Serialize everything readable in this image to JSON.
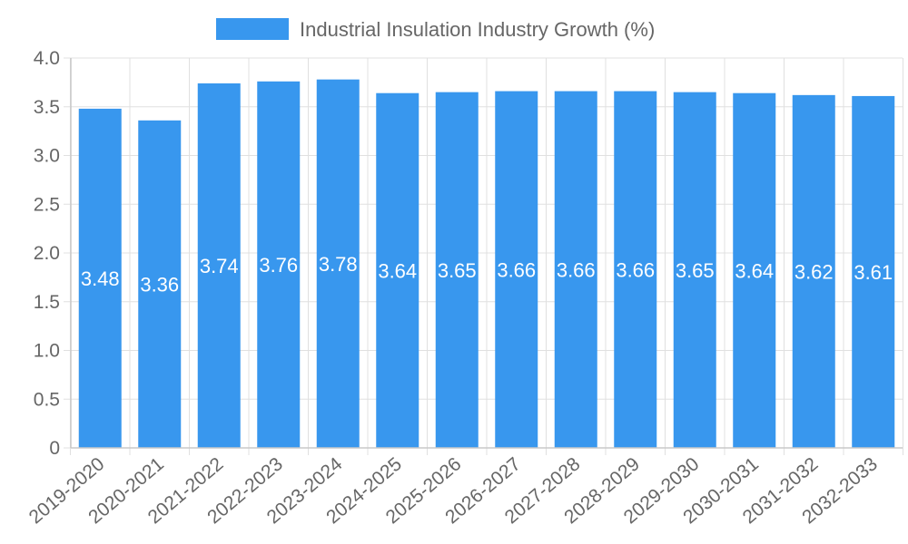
{
  "chart_data": {
    "type": "bar",
    "title": "",
    "xlabel": "",
    "ylabel": "",
    "legend": {
      "label": "Industrial Insulation Industry Growth (%)",
      "placement": "top-center"
    },
    "categories": [
      "2019-2020",
      "2020-2021",
      "2021-2022",
      "2022-2023",
      "2023-2024",
      "2024-2025",
      "2025-2026",
      "2026-2027",
      "2027-2028",
      "2028-2029",
      "2029-2030",
      "2030-2031",
      "2031-2032",
      "2032-2033"
    ],
    "series": [
      {
        "name": "Industrial Insulation Industry Growth (%)",
        "values": [
          3.48,
          3.36,
          3.74,
          3.76,
          3.78,
          3.64,
          3.65,
          3.66,
          3.66,
          3.66,
          3.65,
          3.64,
          3.62,
          3.61
        ]
      }
    ],
    "value_labels": [
      "3.48",
      "3.36",
      "3.74",
      "3.76",
      "3.78",
      "3.64",
      "3.65",
      "3.66",
      "3.66",
      "3.66",
      "3.65",
      "3.64",
      "3.62",
      "3.61"
    ],
    "ylim": [
      0,
      4.0
    ],
    "yticks": [
      0,
      0.5,
      1.0,
      1.5,
      2.0,
      2.5,
      3.0,
      3.5,
      4.0
    ],
    "ytick_labels": [
      "0",
      "0.5",
      "1.0",
      "1.5",
      "2.0",
      "2.5",
      "3.0",
      "3.5",
      "4.0"
    ],
    "grid": true,
    "colors": {
      "bar": "#3897ee",
      "grid": "#e0e0e0",
      "axis": "#c8c8c8",
      "text": "#666666",
      "label": "#ffffff"
    }
  }
}
